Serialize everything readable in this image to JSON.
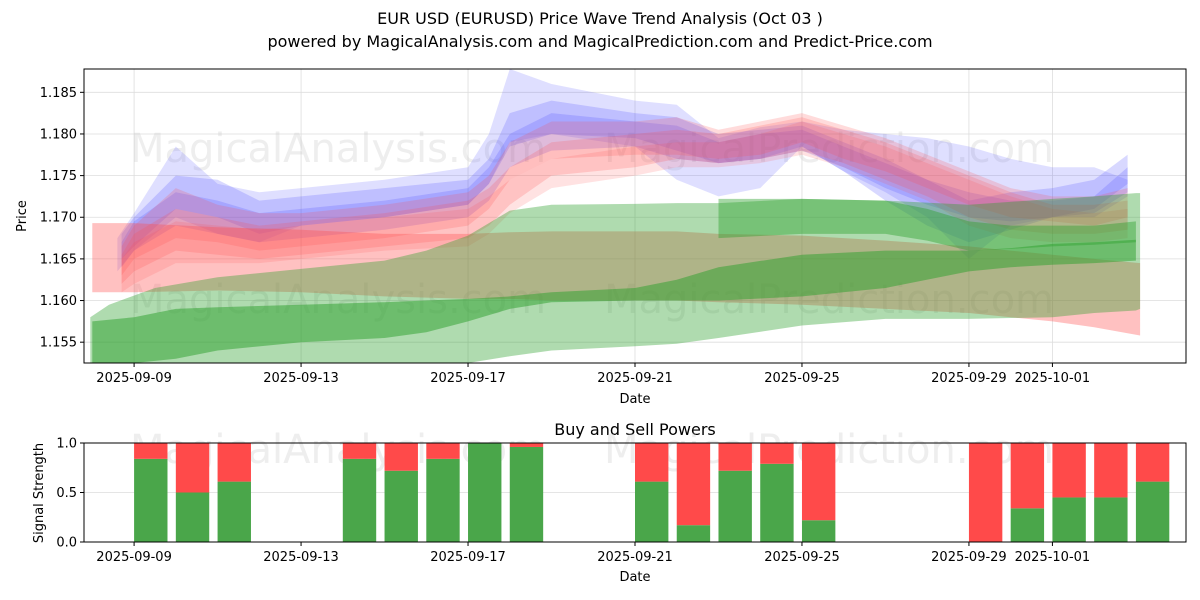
{
  "header": {
    "title": "EUR USD (EURUSD) Price Wave Trend Analysis (Oct 03 )",
    "subtitle": "powered by MagicalAnalysis.com and MagicalPrediction.com and Predict-Price.com"
  },
  "watermarks": [
    "MagicalAnalysis.com",
    "MagicalPrediction.com"
  ],
  "colors": {
    "blue_band": "#4d4dff",
    "red_band": "#ff4d4d",
    "green_band": "#2ca02c",
    "buy": "#4aa64a",
    "sell": "#ff4a4a",
    "grid": "#dddddd"
  },
  "chart_data": [
    {
      "type": "area",
      "title": "",
      "xlabel": "Date",
      "ylabel": "Price",
      "ylim": [
        1.1525,
        1.1878
      ],
      "x_start_date": "2025-09-09",
      "xlim_days": [
        -1.2,
        25.2
      ],
      "grid": true,
      "yticks": [
        "1.155",
        "1.160",
        "1.165",
        "1.170",
        "1.175",
        "1.180",
        "1.185"
      ],
      "ytick_values": [
        1.155,
        1.16,
        1.165,
        1.17,
        1.175,
        1.18,
        1.185
      ],
      "xticks": [
        "2025-09-09",
        "2025-09-13",
        "2025-09-17",
        "2025-09-21",
        "2025-09-25",
        "2025-09-29",
        "2025-10-01"
      ],
      "xtick_days": [
        0,
        4,
        8,
        12,
        16,
        20,
        22
      ],
      "wave_bands": [
        {
          "color": "blue",
          "opacity": 0.18,
          "x": [
            -0.4,
            0,
            1,
            2,
            3,
            4,
            6,
            8,
            8.5,
            9,
            10,
            12,
            13,
            14,
            15,
            16,
            17,
            18,
            19,
            20,
            21,
            22,
            23,
            23.8
          ],
          "upper": [
            1.1675,
            1.1705,
            1.1785,
            1.174,
            1.173,
            1.1735,
            1.1745,
            1.176,
            1.18,
            1.1878,
            1.186,
            1.184,
            1.1835,
            1.1795,
            1.1808,
            1.1815,
            1.1805,
            1.18,
            1.1795,
            1.1785,
            1.177,
            1.176,
            1.176,
            1.1745
          ],
          "lower": [
            1.1635,
            1.166,
            1.17,
            1.168,
            1.167,
            1.169,
            1.17,
            1.1715,
            1.174,
            1.179,
            1.18,
            1.1785,
            1.1745,
            1.1725,
            1.1735,
            1.1785,
            1.1755,
            1.173,
            1.17,
            1.165,
            1.169,
            1.17,
            1.17,
            1.1725
          ]
        },
        {
          "color": "blue",
          "opacity": 0.22,
          "x": [
            -0.3,
            0,
            1,
            2,
            3,
            4,
            6,
            8,
            8.5,
            9,
            10,
            12,
            13,
            14,
            15,
            16,
            17,
            18,
            19,
            20,
            21,
            22,
            23,
            23.8
          ],
          "upper": [
            1.168,
            1.17,
            1.175,
            1.1745,
            1.172,
            1.1725,
            1.1735,
            1.1745,
            1.177,
            1.1825,
            1.184,
            1.1825,
            1.182,
            1.18,
            1.1805,
            1.181,
            1.179,
            1.177,
            1.1745,
            1.172,
            1.173,
            1.1735,
            1.1745,
            1.1775
          ],
          "lower": [
            1.165,
            1.1665,
            1.171,
            1.17,
            1.168,
            1.169,
            1.17,
            1.1715,
            1.174,
            1.1785,
            1.18,
            1.1795,
            1.178,
            1.1765,
            1.177,
            1.1785,
            1.1755,
            1.172,
            1.169,
            1.167,
            1.1685,
            1.17,
            1.171,
            1.174
          ]
        },
        {
          "color": "blue",
          "opacity": 0.22,
          "x": [
            -0.3,
            0,
            1,
            2,
            3,
            4,
            6,
            8,
            8.5,
            9,
            10,
            12,
            13,
            14,
            15,
            16,
            17,
            18,
            19,
            20,
            21,
            22,
            23,
            23.8
          ],
          "upper": [
            1.167,
            1.1695,
            1.173,
            1.172,
            1.1705,
            1.171,
            1.172,
            1.1735,
            1.176,
            1.18,
            1.1825,
            1.1815,
            1.181,
            1.179,
            1.18,
            1.1805,
            1.1785,
            1.1765,
            1.1745,
            1.173,
            1.172,
            1.172,
            1.1725,
            1.176
          ],
          "lower": [
            1.164,
            1.166,
            1.169,
            1.168,
            1.167,
            1.1675,
            1.1685,
            1.17,
            1.172,
            1.176,
            1.178,
            1.1785,
            1.177,
            1.1765,
            1.177,
            1.178,
            1.176,
            1.1735,
            1.1715,
            1.17,
            1.1695,
            1.17,
            1.1705,
            1.173
          ]
        },
        {
          "color": "red",
          "opacity": 0.2,
          "x": [
            -0.3,
            0,
            1,
            2,
            3,
            4,
            6,
            8,
            8.5,
            9,
            10,
            12,
            13,
            14,
            15,
            16,
            17,
            18,
            19,
            20,
            21,
            22,
            23,
            23.8
          ],
          "upper": [
            1.1665,
            1.169,
            1.1735,
            1.1715,
            1.1705,
            1.1705,
            1.1715,
            1.173,
            1.175,
            1.179,
            1.1815,
            1.1815,
            1.182,
            1.1805,
            1.1815,
            1.1825,
            1.181,
            1.1795,
            1.1775,
            1.1755,
            1.1735,
            1.1725,
            1.1725,
            1.1735
          ],
          "lower": [
            1.163,
            1.165,
            1.1675,
            1.167,
            1.166,
            1.1665,
            1.1675,
            1.169,
            1.171,
            1.1745,
            1.177,
            1.1775,
            1.1775,
            1.177,
            1.1775,
            1.179,
            1.177,
            1.1755,
            1.1735,
            1.1715,
            1.17,
            1.1695,
            1.169,
            1.17
          ]
        },
        {
          "color": "red",
          "opacity": 0.2,
          "x": [
            -0.3,
            0,
            1,
            2,
            3,
            4,
            6,
            8,
            8.5,
            9,
            10,
            12,
            13,
            14,
            15,
            16,
            17,
            18,
            19,
            20,
            21,
            22,
            23,
            23.8
          ],
          "upper": [
            1.1655,
            1.168,
            1.171,
            1.17,
            1.169,
            1.1695,
            1.1705,
            1.172,
            1.1735,
            1.176,
            1.179,
            1.18,
            1.1805,
            1.18,
            1.181,
            1.182,
            1.1805,
            1.179,
            1.177,
            1.175,
            1.173,
            1.1715,
            1.1715,
            1.172
          ],
          "lower": [
            1.162,
            1.1635,
            1.166,
            1.1655,
            1.165,
            1.1655,
            1.1665,
            1.1675,
            1.169,
            1.1715,
            1.175,
            1.176,
            1.177,
            1.1765,
            1.177,
            1.178,
            1.1765,
            1.1745,
            1.1725,
            1.17,
            1.1685,
            1.168,
            1.168,
            1.1685
          ]
        },
        {
          "color": "red",
          "opacity": 0.16,
          "x": [
            -0.3,
            0,
            1,
            2,
            3,
            4,
            6,
            8,
            8.5,
            9,
            10,
            12,
            13,
            14,
            15,
            16,
            17,
            18,
            19,
            20,
            21,
            22,
            23,
            23.8
          ],
          "upper": [
            1.165,
            1.167,
            1.1695,
            1.169,
            1.1685,
            1.169,
            1.17,
            1.171,
            1.1725,
            1.1745,
            1.177,
            1.1785,
            1.179,
            1.179,
            1.18,
            1.1815,
            1.18,
            1.1785,
            1.1765,
            1.1745,
            1.1725,
            1.171,
            1.1705,
            1.171
          ],
          "lower": [
            1.161,
            1.162,
            1.1645,
            1.1645,
            1.1645,
            1.165,
            1.166,
            1.1665,
            1.168,
            1.1705,
            1.1735,
            1.175,
            1.176,
            1.176,
            1.1765,
            1.1775,
            1.176,
            1.174,
            1.172,
            1.169,
            1.1675,
            1.167,
            1.167,
            1.1675
          ]
        },
        {
          "color": "red",
          "opacity": 0.35,
          "x": [
            -1.0,
            0,
            2,
            4,
            6,
            8,
            9,
            10,
            12,
            13,
            14,
            16,
            18,
            20,
            21,
            22,
            23,
            24.1
          ],
          "upper": [
            1.1693,
            1.1693,
            1.1688,
            1.1685,
            1.168,
            1.168,
            1.1682,
            1.1683,
            1.1683,
            1.1683,
            1.168,
            1.1678,
            1.1672,
            1.1665,
            1.166,
            1.1655,
            1.165,
            1.1645
          ],
          "lower": [
            1.161,
            1.161,
            1.1612,
            1.161,
            1.1605,
            1.1602,
            1.1602,
            1.16,
            1.16,
            1.16,
            1.1598,
            1.1595,
            1.159,
            1.1585,
            1.158,
            1.1575,
            1.1568,
            1.1558
          ]
        },
        {
          "color": "green",
          "opacity": 0.38,
          "x": [
            -1.05,
            -0.6,
            0.5,
            2,
            4,
            6,
            7,
            8,
            9,
            10,
            12,
            13,
            14,
            16,
            18,
            20,
            22,
            23,
            24.0,
            24.1
          ],
          "upper": [
            1.158,
            1.1595,
            1.1615,
            1.1628,
            1.1638,
            1.1648,
            1.166,
            1.1678,
            1.1708,
            1.1715,
            1.1716,
            1.1717,
            1.1717,
            1.1722,
            1.172,
            1.1715,
            1.1722,
            1.1725,
            1.1729,
            1.1729
          ],
          "lower": [
            1.1525,
            1.1525,
            1.1525,
            1.1525,
            1.1525,
            1.1525,
            1.1525,
            1.1525,
            1.1533,
            1.154,
            1.1545,
            1.1548,
            1.1555,
            1.157,
            1.1578,
            1.1578,
            1.158,
            1.1585,
            1.1588,
            1.159
          ]
        },
        {
          "color": "green",
          "opacity": 0.5,
          "x": [
            -1.0,
            0,
            1,
            2,
            4,
            6,
            7,
            8,
            9,
            10,
            12,
            13,
            14,
            16,
            18,
            20,
            21,
            22,
            23,
            24.0
          ],
          "upper": [
            1.1575,
            1.158,
            1.159,
            1.1592,
            1.1595,
            1.1598,
            1.16,
            1.1602,
            1.1605,
            1.161,
            1.1615,
            1.1625,
            1.164,
            1.1655,
            1.166,
            1.166,
            1.1663,
            1.1668,
            1.167,
            1.1673
          ],
          "lower": [
            1.1525,
            1.1525,
            1.153,
            1.154,
            1.155,
            1.1555,
            1.1562,
            1.1575,
            1.159,
            1.1598,
            1.16,
            1.16,
            1.16,
            1.1605,
            1.1615,
            1.1635,
            1.164,
            1.1643,
            1.1645,
            1.1648
          ]
        },
        {
          "color": "green",
          "opacity": 0.42,
          "x": [
            14,
            16,
            18,
            19,
            20,
            21,
            22,
            23,
            24.0
          ],
          "upper": [
            1.1722,
            1.1722,
            1.172,
            1.171,
            1.1695,
            1.169,
            1.169,
            1.169,
            1.1695
          ],
          "lower": [
            1.1675,
            1.168,
            1.168,
            1.1672,
            1.166,
            1.1662,
            1.1665,
            1.1667,
            1.167
          ]
        }
      ]
    },
    {
      "type": "bar",
      "title": "Buy and Sell Powers",
      "xlabel": "Date",
      "ylabel": "Signal Strength",
      "ylim": [
        0,
        1
      ],
      "yticks": [
        "0.0",
        "0.5",
        "1.0"
      ],
      "ytick_values": [
        0,
        0.5,
        1.0
      ],
      "xticks": [
        "2025-09-09",
        "2025-09-13",
        "2025-09-17",
        "2025-09-21",
        "2025-09-25",
        "2025-09-29",
        "2025-10-01"
      ],
      "xtick_days": [
        0,
        4,
        8,
        12,
        16,
        20,
        22
      ],
      "stacked": true,
      "categories": [
        "2025-09-09",
        "2025-09-10",
        "2025-09-11",
        "2025-09-14",
        "2025-09-15",
        "2025-09-16",
        "2025-09-17",
        "2025-09-18",
        "2025-09-21",
        "2025-09-22",
        "2025-09-23",
        "2025-09-24",
        "2025-09-25",
        "2025-09-29",
        "2025-09-30",
        "2025-10-01",
        "2025-10-02",
        "2025-10-03"
      ],
      "category_days": [
        0,
        1,
        2,
        5,
        6,
        7,
        8,
        9,
        12,
        13,
        14,
        15,
        16,
        20,
        21,
        22,
        23,
        24
      ],
      "series": [
        {
          "name": "Buy",
          "color": "green",
          "values": [
            0.84,
            0.5,
            0.61,
            0.84,
            0.72,
            0.84,
            1.0,
            0.96,
            0.61,
            0.17,
            0.72,
            0.79,
            0.22,
            0.0,
            0.34,
            0.45,
            0.45,
            0.61
          ]
        },
        {
          "name": "Sell",
          "color": "red",
          "values": [
            0.16,
            0.5,
            0.39,
            0.16,
            0.28,
            0.16,
            0.0,
            0.04,
            0.39,
            0.83,
            0.28,
            0.21,
            0.78,
            1.0,
            0.66,
            0.55,
            0.55,
            0.39
          ]
        }
      ]
    }
  ]
}
